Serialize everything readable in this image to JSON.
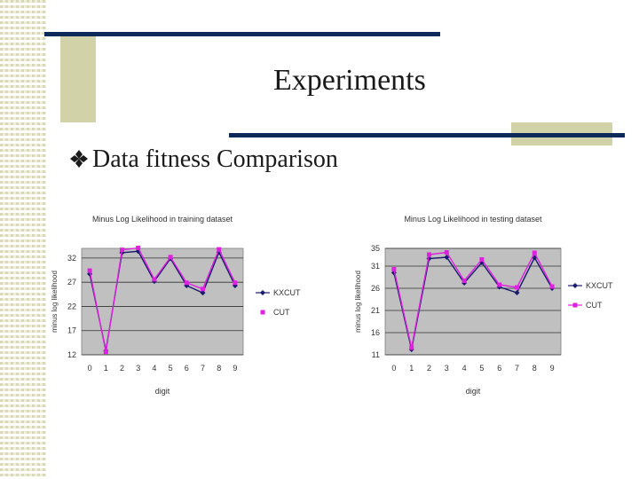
{
  "slide": {
    "title": "Experiments",
    "bullet_text": "Data fitness Comparison",
    "bullet_icon": "diamond-bullet-icon"
  },
  "colors": {
    "accent_bar": "#0b2a5a",
    "olive_block": "#d2d2a8",
    "plot_bg": "#c0c0c0",
    "series_kxcut": "#1a1a6e",
    "series_cut": "#e020e0"
  },
  "chart_data": [
    {
      "type": "line",
      "title": "Minus Log Likelihood in training dataset",
      "xlabel": "digit",
      "ylabel": "minus log likelihood",
      "x": [
        0,
        1,
        2,
        3,
        4,
        5,
        6,
        7,
        8,
        9
      ],
      "ylim": [
        12,
        34
      ],
      "yticks": [
        12,
        17,
        22,
        27,
        32
      ],
      "grid": true,
      "legend": "right",
      "series": [
        {
          "name": "KXCUT",
          "values": [
            28.7,
            12.9,
            33.1,
            33.4,
            27.2,
            31.9,
            26.3,
            24.8,
            33.2,
            26.3
          ]
        },
        {
          "name": "CUT",
          "values": [
            29.4,
            12.6,
            33.7,
            34.1,
            27.6,
            32.2,
            26.9,
            25.6,
            33.8,
            26.9
          ]
        }
      ]
    },
    {
      "type": "line",
      "title": "Minus Log Likelihood in testing dataset",
      "xlabel": "digit",
      "ylabel": "minus log likelihood",
      "x": [
        0,
        1,
        2,
        3,
        4,
        5,
        6,
        7,
        8,
        9
      ],
      "ylim": [
        11,
        35
      ],
      "yticks": [
        11,
        16,
        21,
        26,
        31,
        35
      ],
      "grid": true,
      "legend": "right",
      "series": [
        {
          "name": "KXCUT",
          "values": [
            29.5,
            12.2,
            32.7,
            33.0,
            27.2,
            31.8,
            26.3,
            25.0,
            32.9,
            26.0
          ]
        },
        {
          "name": "CUT",
          "values": [
            30.3,
            12.6,
            33.6,
            34.1,
            27.7,
            32.5,
            26.8,
            26.2,
            34.0,
            26.4
          ]
        }
      ]
    }
  ]
}
